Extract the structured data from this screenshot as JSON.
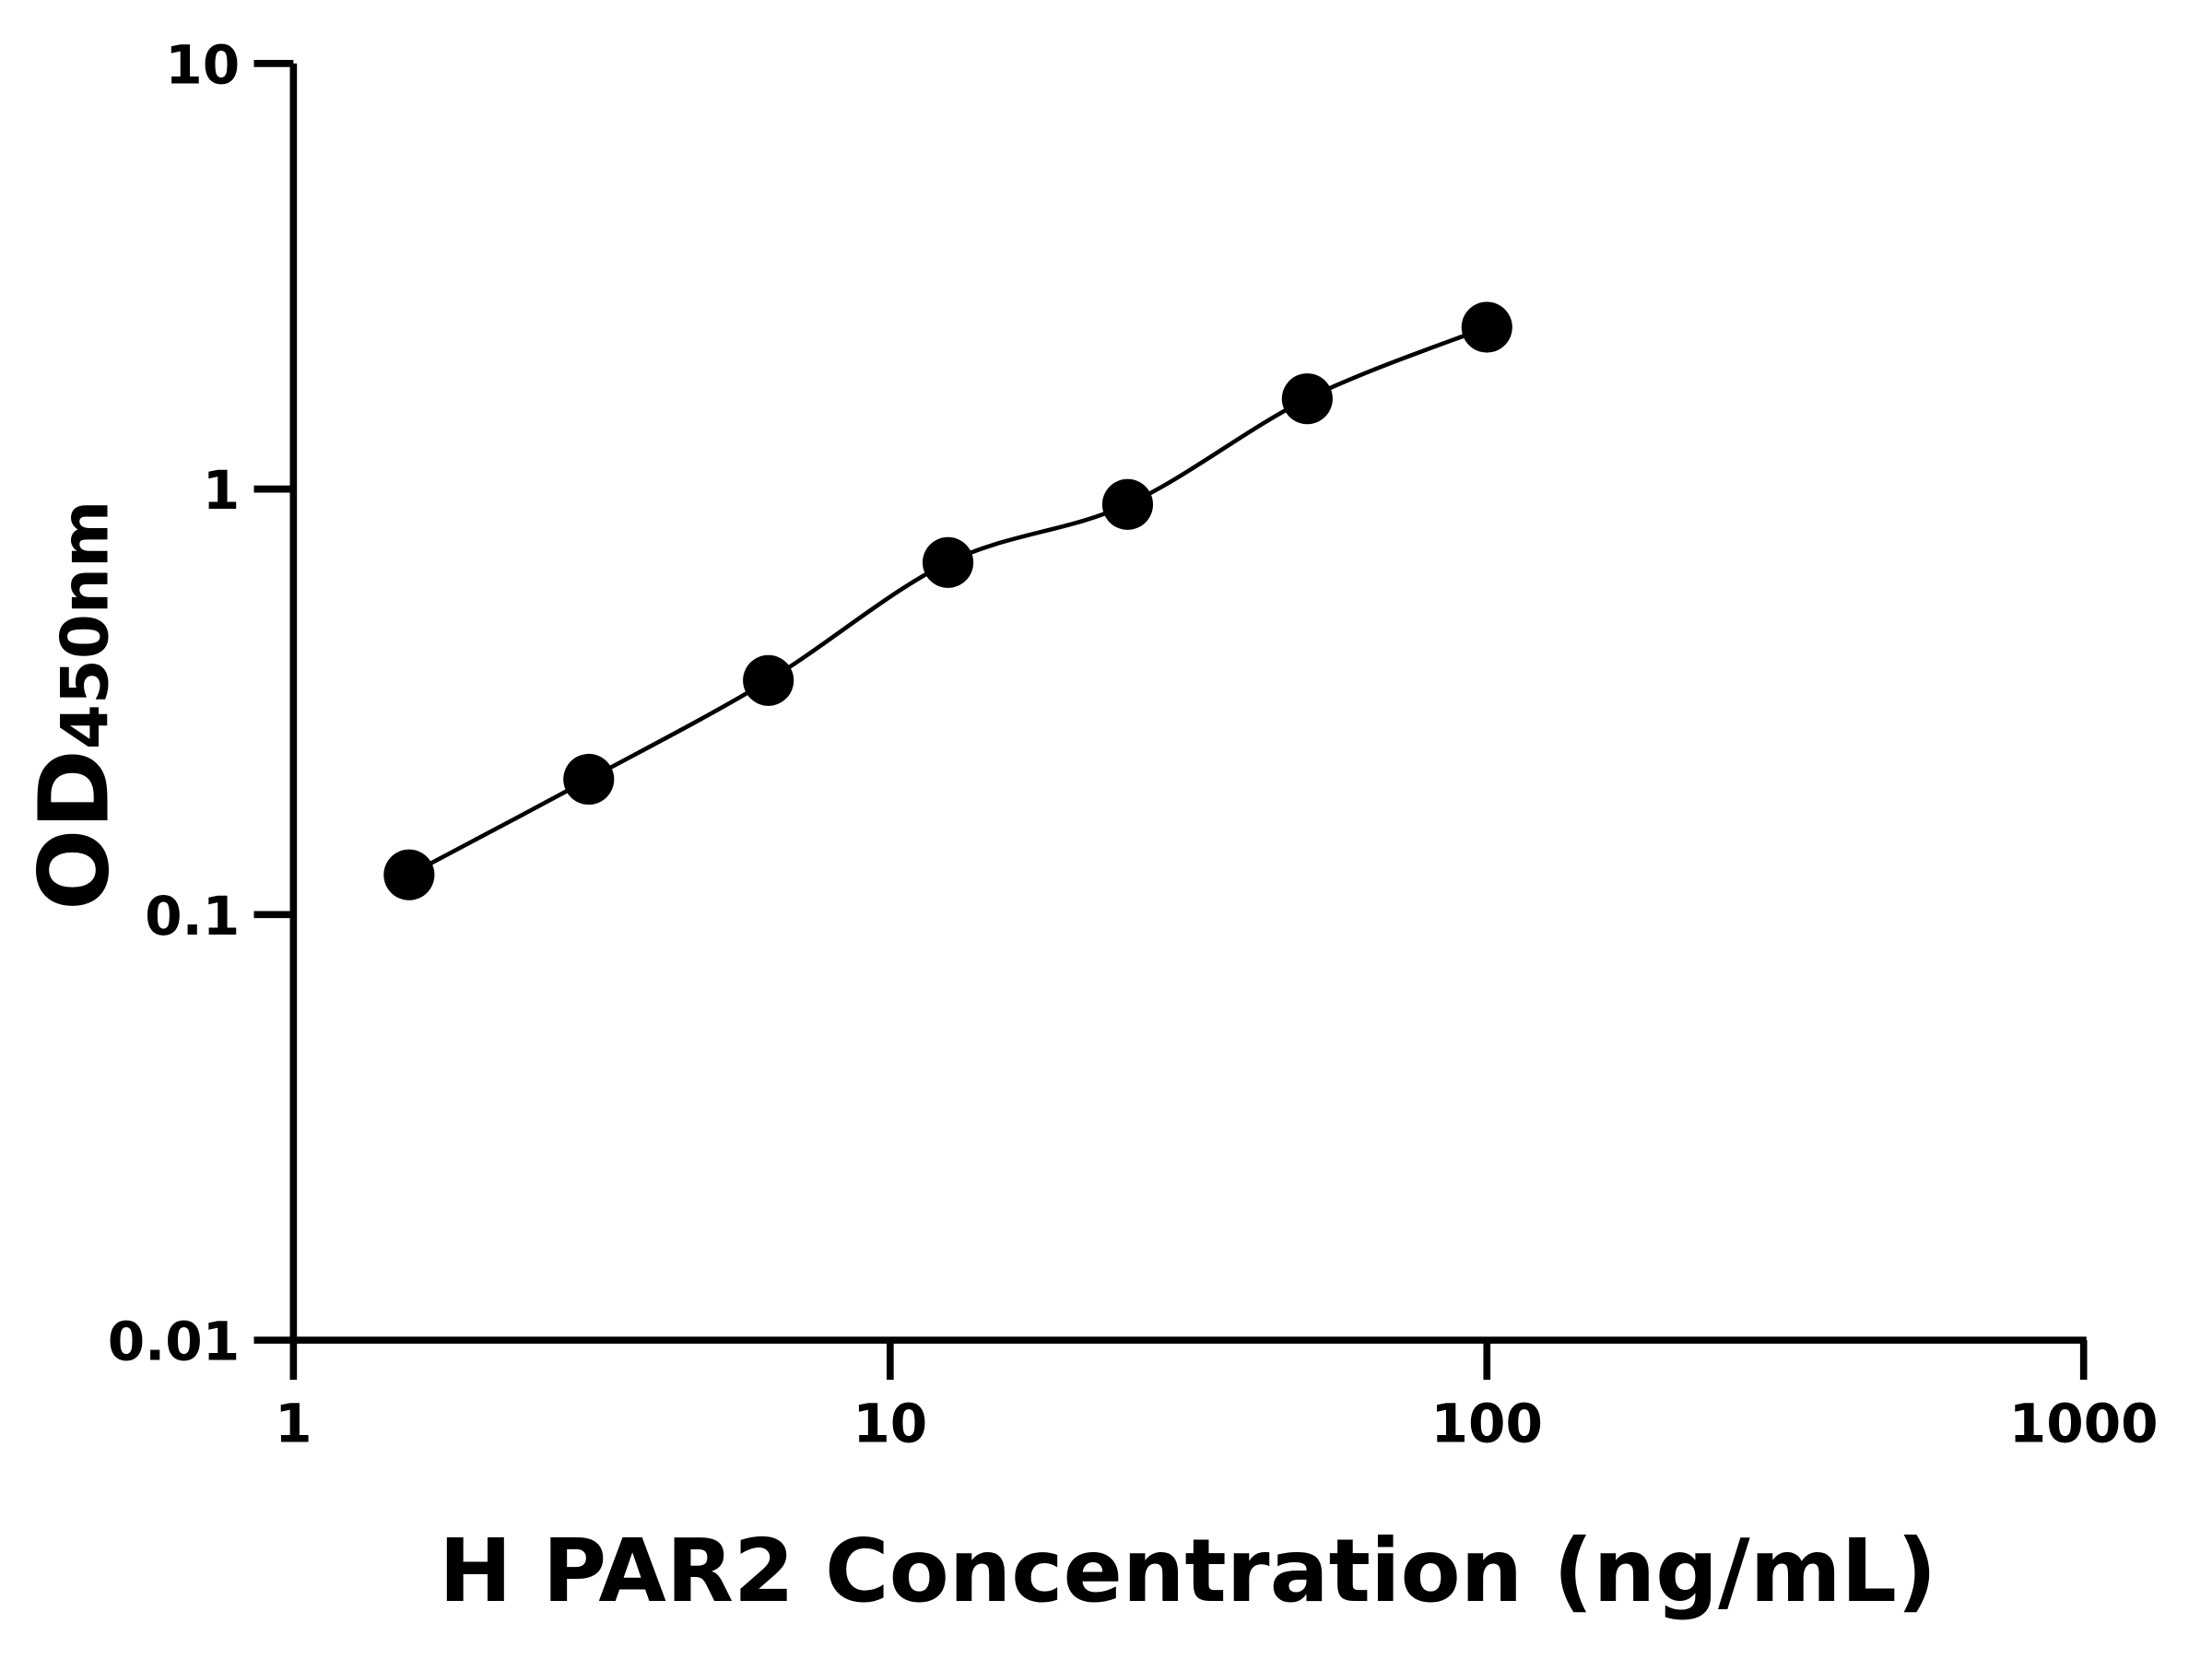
{
  "chart_data": {
    "type": "scatter",
    "title": "",
    "xlabel": "H PAR2 Concentration (ng/mL)",
    "ylabel_main": "OD",
    "ylabel_sub": "450nm",
    "x_scale": "log",
    "y_scale": "log",
    "xlim": [
      1,
      1000
    ],
    "ylim": [
      0.01,
      10
    ],
    "x_ticks": [
      "1",
      "10",
      "100",
      "1000"
    ],
    "y_ticks": [
      "0.01",
      "0.1",
      "1",
      "10"
    ],
    "grid": false,
    "legend": "none",
    "fit_line": true,
    "marker_color": "#000000",
    "line_color": "#000000",
    "series": [
      {
        "x": [
          1.5625,
          3.125,
          6.25,
          12.5,
          25,
          50,
          100
        ],
        "y": [
          0.124,
          0.208,
          0.355,
          0.672,
          0.92,
          1.63,
          2.4
        ]
      }
    ]
  }
}
